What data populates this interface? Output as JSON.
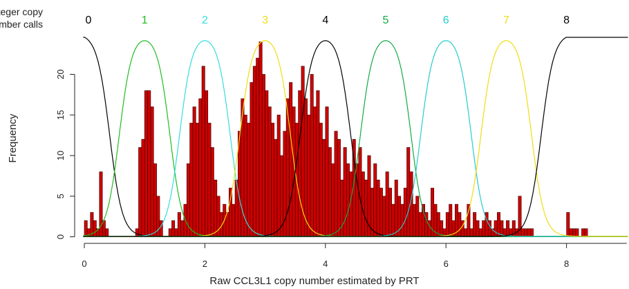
{
  "chart_data": {
    "type": "histogram",
    "xlabel": "Raw CCL3L1 copy number estimated by PRT",
    "ylabel": "Frequency",
    "xlim": [
      0,
      9
    ],
    "ylim": [
      0,
      25
    ],
    "x_ticks": [
      0,
      2,
      4,
      6,
      8
    ],
    "y_ticks": [
      0,
      5,
      10,
      15,
      20
    ],
    "bin_width": 0.05,
    "bins": [
      [
        0.0,
        2
      ],
      [
        0.05,
        1
      ],
      [
        0.1,
        3
      ],
      [
        0.15,
        2
      ],
      [
        0.2,
        1
      ],
      [
        0.25,
        8
      ],
      [
        0.3,
        2
      ],
      [
        0.35,
        1
      ],
      [
        0.85,
        1
      ],
      [
        0.9,
        11
      ],
      [
        0.95,
        12
      ],
      [
        1.0,
        18
      ],
      [
        1.05,
        18
      ],
      [
        1.1,
        16
      ],
      [
        1.15,
        9
      ],
      [
        1.2,
        5
      ],
      [
        1.25,
        2
      ],
      [
        1.4,
        1
      ],
      [
        1.45,
        2
      ],
      [
        1.5,
        1
      ],
      [
        1.55,
        3
      ],
      [
        1.6,
        2
      ],
      [
        1.65,
        4
      ],
      [
        1.7,
        9
      ],
      [
        1.75,
        14
      ],
      [
        1.8,
        16
      ],
      [
        1.85,
        14
      ],
      [
        1.9,
        17
      ],
      [
        1.95,
        21
      ],
      [
        2.0,
        18
      ],
      [
        2.05,
        14
      ],
      [
        2.1,
        11
      ],
      [
        2.15,
        7
      ],
      [
        2.2,
        5
      ],
      [
        2.25,
        3
      ],
      [
        2.3,
        4
      ],
      [
        2.35,
        3
      ],
      [
        2.4,
        6
      ],
      [
        2.45,
        4
      ],
      [
        2.5,
        7
      ],
      [
        2.55,
        13
      ],
      [
        2.6,
        17
      ],
      [
        2.65,
        15
      ],
      [
        2.7,
        14
      ],
      [
        2.75,
        19
      ],
      [
        2.8,
        21
      ],
      [
        2.85,
        22
      ],
      [
        2.9,
        24
      ],
      [
        2.95,
        20
      ],
      [
        3.0,
        18
      ],
      [
        3.05,
        16
      ],
      [
        3.1,
        14
      ],
      [
        3.15,
        12
      ],
      [
        3.2,
        15
      ],
      [
        3.25,
        10
      ],
      [
        3.3,
        13
      ],
      [
        3.35,
        17
      ],
      [
        3.4,
        19
      ],
      [
        3.45,
        16
      ],
      [
        3.5,
        14
      ],
      [
        3.55,
        18
      ],
      [
        3.6,
        21
      ],
      [
        3.65,
        17
      ],
      [
        3.7,
        15
      ],
      [
        3.75,
        20
      ],
      [
        3.8,
        16
      ],
      [
        3.85,
        18
      ],
      [
        3.9,
        14
      ],
      [
        3.95,
        12
      ],
      [
        4.0,
        16
      ],
      [
        4.05,
        11
      ],
      [
        4.1,
        9
      ],
      [
        4.15,
        13
      ],
      [
        4.2,
        12
      ],
      [
        4.25,
        7
      ],
      [
        4.3,
        11
      ],
      [
        4.35,
        9
      ],
      [
        4.4,
        8
      ],
      [
        4.45,
        12
      ],
      [
        4.5,
        9
      ],
      [
        4.55,
        11
      ],
      [
        4.6,
        8
      ],
      [
        4.65,
        7
      ],
      [
        4.7,
        10
      ],
      [
        4.75,
        6
      ],
      [
        4.8,
        9
      ],
      [
        4.85,
        7
      ],
      [
        4.9,
        6
      ],
      [
        4.95,
        5
      ],
      [
        5.0,
        8
      ],
      [
        5.05,
        6
      ],
      [
        5.1,
        4
      ],
      [
        5.15,
        7
      ],
      [
        5.2,
        5
      ],
      [
        5.25,
        4
      ],
      [
        5.3,
        6
      ],
      [
        5.35,
        11
      ],
      [
        5.4,
        8
      ],
      [
        5.45,
        4
      ],
      [
        5.5,
        5
      ],
      [
        5.55,
        3
      ],
      [
        5.6,
        4
      ],
      [
        5.65,
        3
      ],
      [
        5.7,
        2
      ],
      [
        5.75,
        6
      ],
      [
        5.8,
        4
      ],
      [
        5.85,
        3
      ],
      [
        5.9,
        2
      ],
      [
        5.95,
        1
      ],
      [
        6.0,
        3
      ],
      [
        6.05,
        4
      ],
      [
        6.1,
        2
      ],
      [
        6.15,
        4
      ],
      [
        6.2,
        3
      ],
      [
        6.25,
        2
      ],
      [
        6.3,
        1
      ],
      [
        6.35,
        4
      ],
      [
        6.4,
        1
      ],
      [
        6.45,
        3
      ],
      [
        6.5,
        2
      ],
      [
        6.55,
        1
      ],
      [
        6.6,
        2
      ],
      [
        6.65,
        3
      ],
      [
        6.7,
        2
      ],
      [
        6.75,
        1
      ],
      [
        6.8,
        2
      ],
      [
        6.85,
        3
      ],
      [
        6.9,
        2
      ],
      [
        6.95,
        1
      ],
      [
        7.0,
        2
      ],
      [
        7.05,
        1
      ],
      [
        7.1,
        2
      ],
      [
        7.15,
        1
      ],
      [
        7.2,
        5
      ],
      [
        7.25,
        1
      ],
      [
        7.3,
        1
      ],
      [
        7.35,
        1
      ],
      [
        7.4,
        1
      ],
      [
        7.45,
        0
      ],
      [
        8.0,
        3
      ],
      [
        8.05,
        1
      ],
      [
        8.1,
        1
      ],
      [
        8.15,
        1
      ],
      [
        8.25,
        1
      ],
      [
        8.3,
        1
      ]
    ],
    "copy_number_calls": {
      "header": [
        "Integer copy",
        "number calls"
      ],
      "calls": [
        {
          "label": "0",
          "center": 0,
          "color": "#000000"
        },
        {
          "label": "1",
          "center": 1,
          "color": "#22bb22"
        },
        {
          "label": "2",
          "center": 2,
          "color": "#33dddd"
        },
        {
          "label": "3",
          "center": 3,
          "color": "#eedd11"
        },
        {
          "label": "4",
          "center": 4,
          "color": "#000000"
        },
        {
          "label": "5",
          "center": 5,
          "color": "#11aa44"
        },
        {
          "label": "6",
          "center": 6,
          "color": "#22cccc"
        },
        {
          "label": "7",
          "center": 7,
          "color": "#eedd11"
        },
        {
          "label": "8",
          "center": 8,
          "color": "#000000"
        }
      ]
    },
    "bar_fill": "#cc0000",
    "bar_stroke": "#330000"
  }
}
